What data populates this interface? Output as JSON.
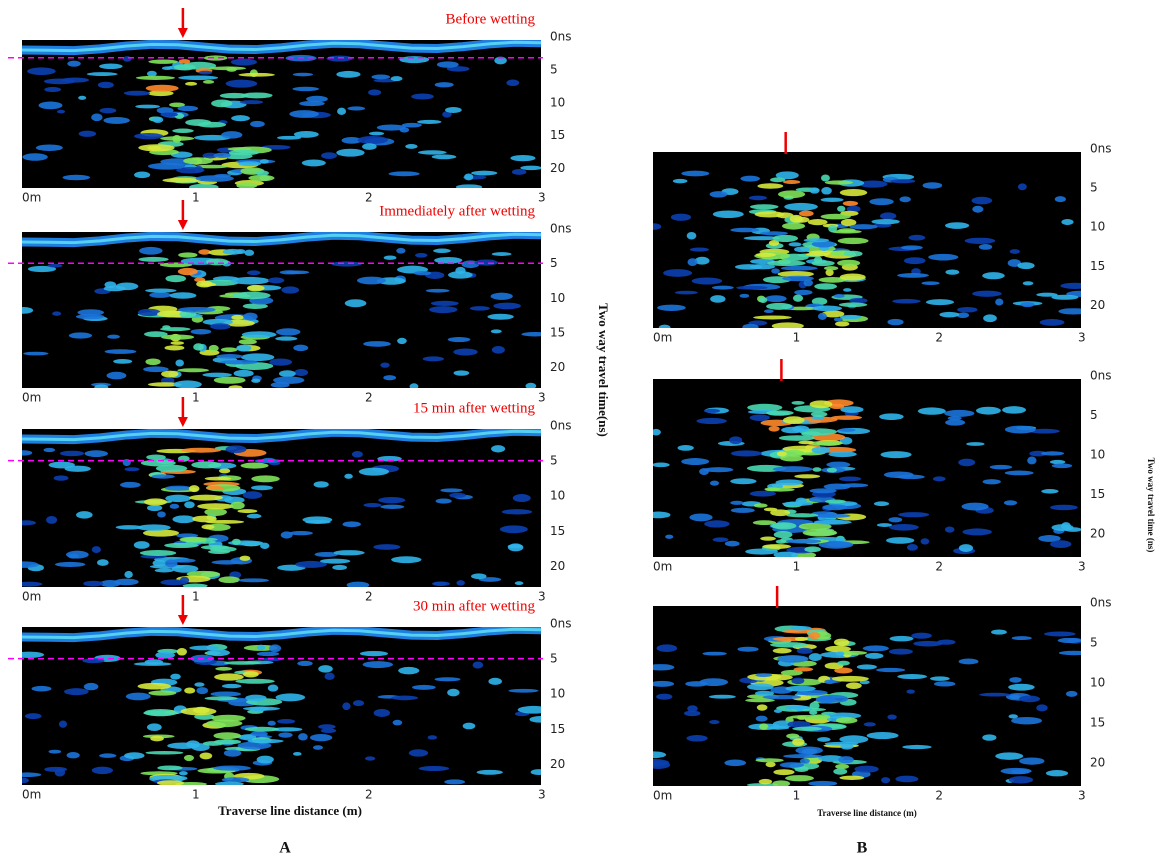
{
  "figure_a": {
    "panels": [
      {
        "title": "Before wetting"
      },
      {
        "title": "Immediately after wetting"
      },
      {
        "title": "15 min after wetting"
      },
      {
        "title": "30 min after wetting"
      }
    ],
    "x_axis_title": "Traverse line distance (m)",
    "y_axis_title": "Two way travel time(ns)",
    "label": "A"
  },
  "figure_b": {
    "x_axis_title": "Traverse line distance (m)",
    "y_axis_title": "Two way travel time (ns)",
    "label": "B"
  },
  "x_ticks": [
    "0m",
    "1",
    "2",
    "3"
  ],
  "y_ticks": [
    "0ns",
    "5",
    "10",
    "15",
    "20"
  ]
}
